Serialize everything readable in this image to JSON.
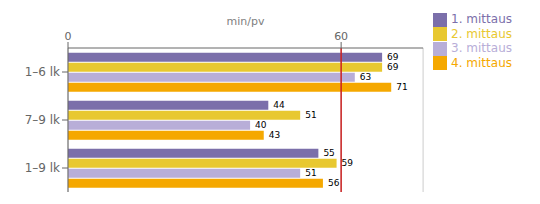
{
  "chart_data": {
    "type": "bar",
    "orientation": "horizontal",
    "categories": [
      "1–6 lk",
      "7–9 lk",
      "1–9 lk"
    ],
    "series": [
      {
        "name": "1. mittaus",
        "color": "#7b6faa",
        "values": [
          69,
          44,
          55
        ]
      },
      {
        "name": "2. mittaus",
        "color": "#e8c830",
        "values": [
          69,
          51,
          59
        ]
      },
      {
        "name": "3. mittaus",
        "color": "#b8aed8",
        "values": [
          63,
          40,
          51
        ]
      },
      {
        "name": "4. mittaus",
        "color": "#f5a800",
        "values": [
          71,
          43,
          56
        ]
      }
    ],
    "xlabel": "min/pv",
    "xlim": [
      0,
      78
    ],
    "xticks": [
      0,
      60
    ],
    "grid": true,
    "legend": "right",
    "data_labels": true,
    "reference_line": {
      "x": 60,
      "color": "#cc2222"
    }
  }
}
